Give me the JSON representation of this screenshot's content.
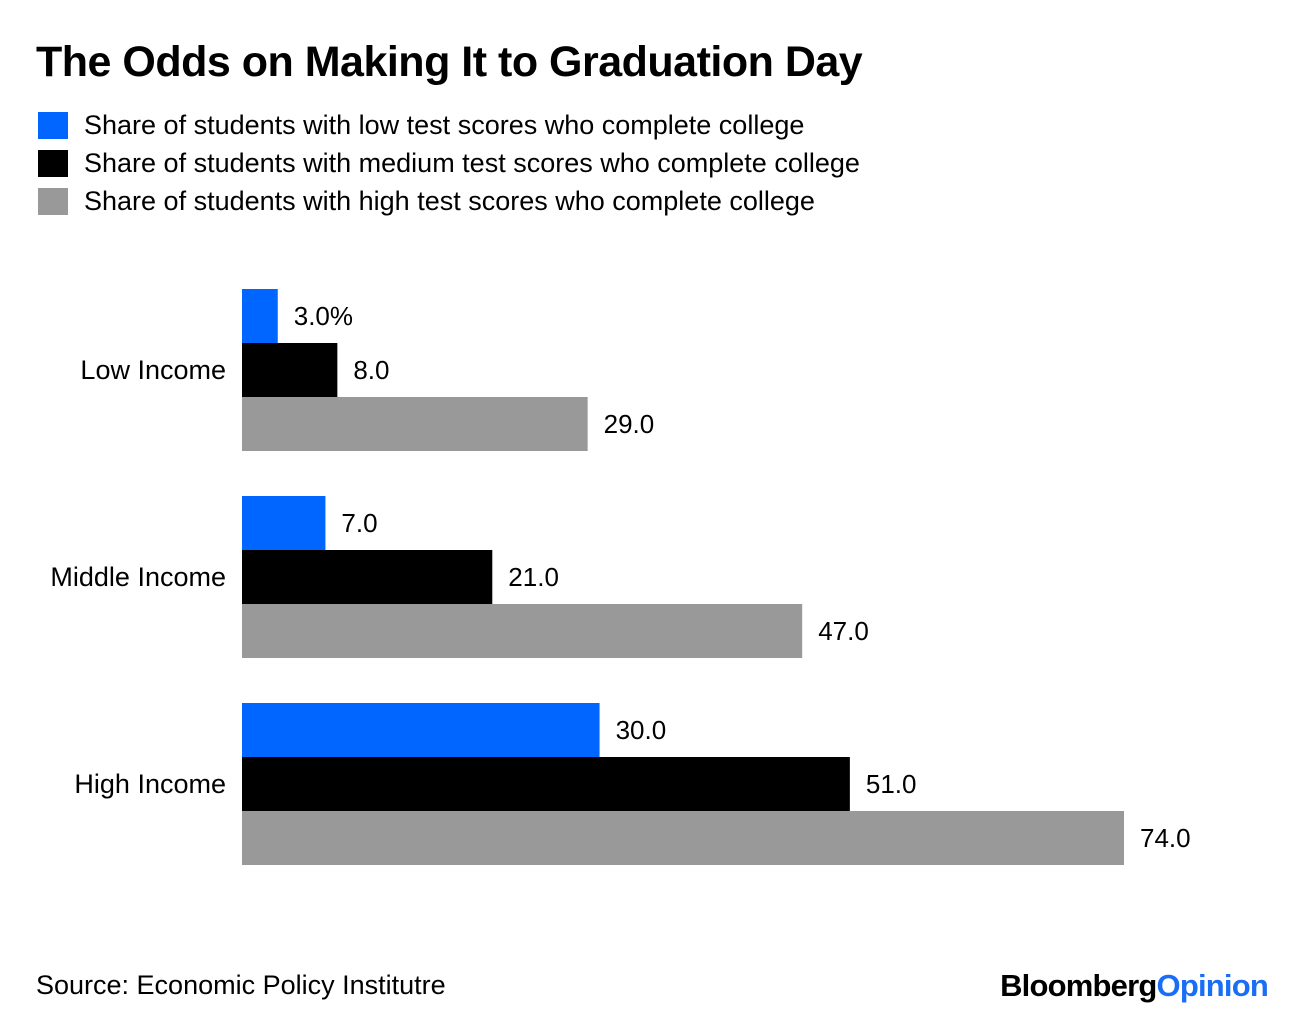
{
  "title": "The Odds on Making It to Graduation Day",
  "source": "Source: Economic Policy Institutre",
  "brand": {
    "part1": "Bloomberg",
    "part2": "Opinion"
  },
  "colors": {
    "low": "#0066ff",
    "medium": "#000000",
    "high": "#999999",
    "brand_accent": "#1a6ef5"
  },
  "chart_data": {
    "type": "bar",
    "orientation": "horizontal",
    "title": "The Odds on Making It to Graduation Day",
    "categories": [
      "Low Income",
      "Middle Income",
      "High Income"
    ],
    "series": [
      {
        "name": "Share of students with low test scores who complete college",
        "color": "#0066ff",
        "values": [
          3.0,
          7.0,
          30.0
        ],
        "labels": [
          "3.0%",
          "7.0",
          "30.0"
        ]
      },
      {
        "name": "Share of students with medium test scores who complete college",
        "color": "#000000",
        "values": [
          8.0,
          21.0,
          51.0
        ],
        "labels": [
          "8.0",
          "21.0",
          "51.0"
        ]
      },
      {
        "name": "Share of students with high test scores who complete college",
        "color": "#999999",
        "values": [
          29.0,
          47.0,
          74.0
        ],
        "labels": [
          "29.0",
          "47.0",
          "74.0"
        ]
      }
    ],
    "xlim": [
      0,
      74
    ],
    "grid": false,
    "legend_position": "top-left"
  }
}
